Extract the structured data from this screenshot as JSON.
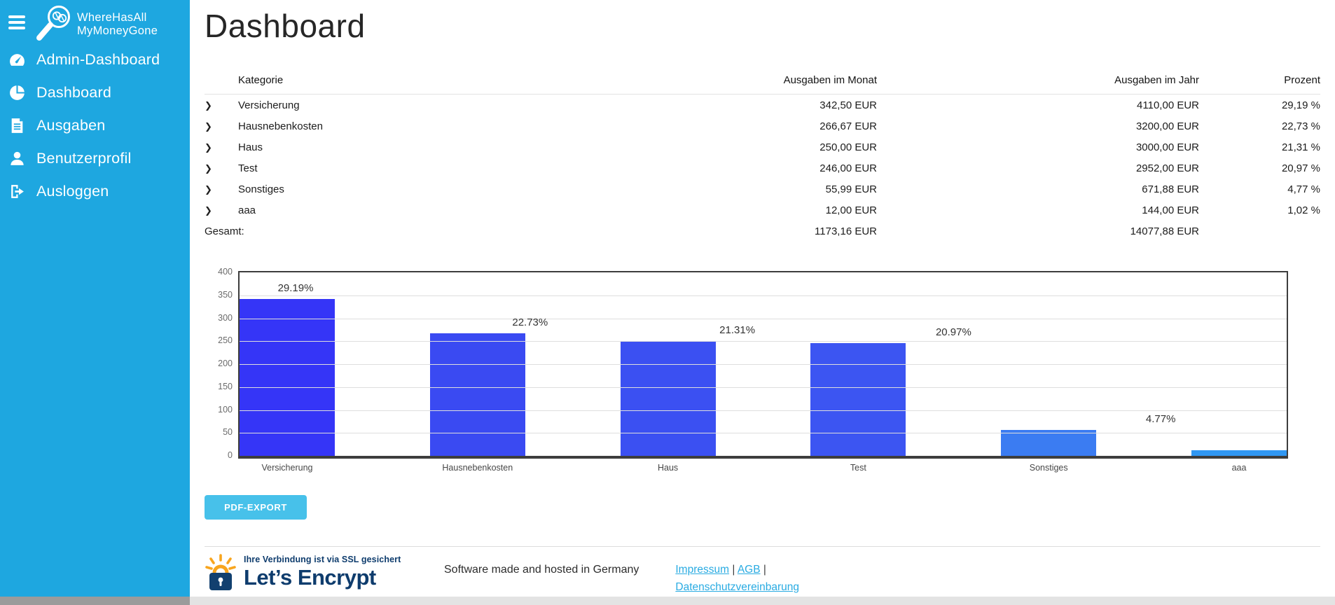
{
  "sidebar": {
    "bg_color": "#1ea7e0",
    "logo": {
      "line1": "WhereHasAll",
      "line2": "MyMoneyGone"
    },
    "items": [
      {
        "label": "Admin-Dashboard",
        "icon": "gauge-icon"
      },
      {
        "label": "Dashboard",
        "icon": "pie-chart-icon"
      },
      {
        "label": "Ausgaben",
        "icon": "document-icon"
      },
      {
        "label": "Benutzerprofil",
        "icon": "user-icon"
      },
      {
        "label": "Ausloggen",
        "icon": "logout-icon"
      }
    ]
  },
  "header": {
    "title": "Dashboard"
  },
  "table": {
    "columns": [
      "Kategorie",
      "Ausgaben im Monat",
      "Ausgaben im Jahr",
      "Prozent"
    ],
    "rows": [
      {
        "kategorie": "Versicherung",
        "monat": "342,50 EUR",
        "jahr": "4110,00 EUR",
        "prozent": "29,19 %"
      },
      {
        "kategorie": "Hausnebenkosten",
        "monat": "266,67 EUR",
        "jahr": "3200,00 EUR",
        "prozent": "22,73 %"
      },
      {
        "kategorie": "Haus",
        "monat": "250,00 EUR",
        "jahr": "3000,00 EUR",
        "prozent": "21,31 %"
      },
      {
        "kategorie": "Test",
        "monat": "246,00 EUR",
        "jahr": "2952,00 EUR",
        "prozent": "20,97 %"
      },
      {
        "kategorie": "Sonstiges",
        "monat": "55,99 EUR",
        "jahr": "671,88 EUR",
        "prozent": "4,77 %"
      },
      {
        "kategorie": "aaa",
        "monat": "12,00 EUR",
        "jahr": "144,00 EUR",
        "prozent": "1,02 %"
      }
    ],
    "total": {
      "label": "Gesamt:",
      "monat": "1173,16 EUR",
      "jahr": "14077,88 EUR",
      "prozent": ""
    }
  },
  "chart_data": {
    "type": "bar",
    "title": "",
    "xlabel": "",
    "ylabel": "",
    "categories": [
      "Versicherung",
      "Hausnebenkosten",
      "Haus",
      "Test",
      "Sonstiges",
      "aaa"
    ],
    "values": [
      342.5,
      266.67,
      250.0,
      246.0,
      55.99,
      12.0
    ],
    "bar_labels": [
      "29.19%",
      "22.73%",
      "21.31%",
      "20.97%",
      "4.77%",
      ""
    ],
    "ylim": [
      0,
      400
    ],
    "ytick_step": 50,
    "grid": true,
    "legend_position": "none",
    "bar_colors": [
      "#3535f7",
      "#3a4af2",
      "#3b50f2",
      "#3c55f2",
      "#3b7cf2",
      "#2f97f3"
    ],
    "border_color": "#3d3d3d"
  },
  "actions": {
    "pdf_export": "PDF-EXPORT"
  },
  "footer": {
    "ssl_note": "Ihre Verbindung ist via SSL gesichert",
    "brand": "Let’s Encrypt",
    "made_in": "Software made and hosted in Germany",
    "links": [
      "Impressum",
      "AGB",
      "Datenschutzvereinbarung"
    ],
    "link_separator": "|"
  },
  "colors": {
    "sidebar_bg": "#1ea7e0",
    "link": "#29abe2",
    "button_bg": "#47c1ea",
    "navy": "#0e3c6d",
    "orange": "#f8a51e"
  }
}
